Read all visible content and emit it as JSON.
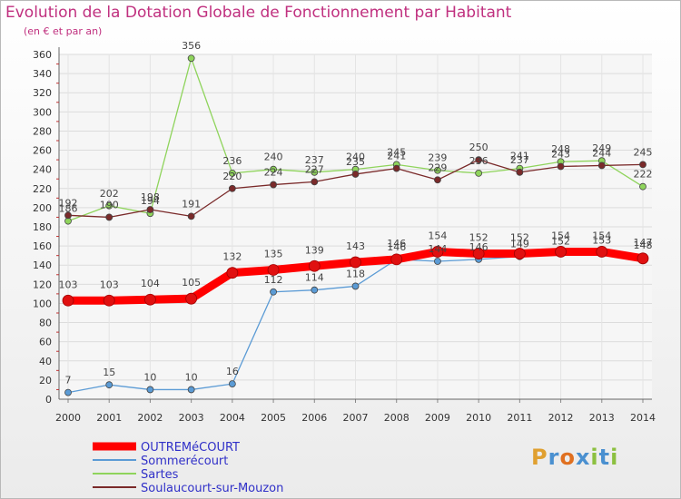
{
  "title": "Evolution de la Dotation Globale de Fonctionnement par Habitant",
  "subtitle": "(en € et par an)",
  "logo": {
    "letters": [
      "P",
      "r",
      "o",
      "x",
      "i",
      "t",
      "i"
    ],
    "colors": [
      "#e0a030",
      "#4a90d0",
      "#e07020",
      "#4a90d0",
      "#8cc040",
      "#4a90d0",
      "#8cc040"
    ]
  },
  "chart_data": {
    "type": "line",
    "x": [
      "2000",
      "2001",
      "2002",
      "2003",
      "2004",
      "2005",
      "2006",
      "2007",
      "2008",
      "2009",
      "2010",
      "2011",
      "2012",
      "2013",
      "2014"
    ],
    "ylim": [
      0,
      360
    ],
    "yticks": [
      0,
      20,
      40,
      60,
      80,
      100,
      120,
      140,
      160,
      180,
      200,
      220,
      240,
      260,
      280,
      300,
      320,
      340,
      360
    ],
    "grid": true,
    "legend_position": "bottom-left",
    "series": [
      {
        "name": "OUTREMéCOURT",
        "color": "#ff0000",
        "values": [
          103,
          103,
          104,
          105,
          132,
          135,
          139,
          143,
          146,
          154,
          152,
          152,
          154,
          154,
          147
        ]
      },
      {
        "name": "Sommerécourt",
        "color": "#5b9bd5",
        "values": [
          7,
          15,
          10,
          10,
          16,
          112,
          114,
          118,
          146,
          144,
          146,
          149,
          152,
          153,
          148
        ]
      },
      {
        "name": "Sartes",
        "color": "#8fd45c",
        "values": [
          186,
          202,
          194,
          356,
          236,
          240,
          237,
          240,
          245,
          239,
          236,
          241,
          248,
          249,
          222
        ]
      },
      {
        "name": "Soulaucourt-sur-Mouzon",
        "color": "#7a2a2a",
        "values": [
          192,
          190,
          198,
          191,
          220,
          224,
          227,
          235,
          241,
          229,
          250,
          237,
          243,
          244,
          245
        ]
      }
    ]
  }
}
